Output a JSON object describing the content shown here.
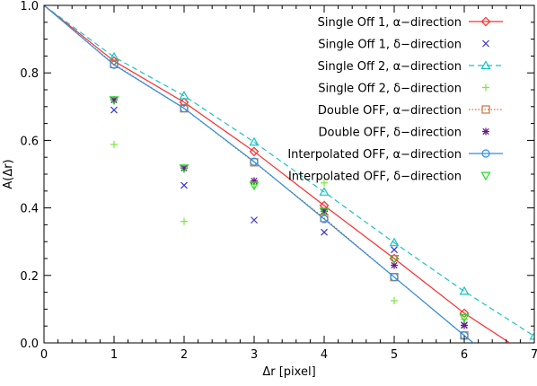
{
  "chart_data": {
    "type": "line",
    "xlabel": "Δr [pixel]",
    "ylabel": "A(Δr)",
    "xlim": [
      0,
      7
    ],
    "ylim": [
      0,
      1
    ],
    "x_ticks": [
      "0",
      "1",
      "2",
      "3",
      "4",
      "5",
      "6",
      "7"
    ],
    "y_ticks": [
      "0.0",
      "0.2",
      "0.4",
      "0.6",
      "0.8",
      "1.0"
    ],
    "legend_position": "top-right",
    "grid": false,
    "series": [
      {
        "name": "Single Off 1, α−direction",
        "color": "#ff2a2a",
        "marker": "diamond",
        "line": "solid",
        "x": [
          0,
          1,
          2,
          3,
          4,
          5,
          6,
          6.65
        ],
        "y": [
          1.0,
          0.835,
          0.713,
          0.567,
          0.407,
          0.25,
          0.088,
          0.0
        ]
      },
      {
        "name": "Single Off 1, δ−direction",
        "color": "#3a33d6",
        "marker": "x",
        "line": "none",
        "x": [
          0,
          1,
          2,
          3,
          4,
          5,
          6
        ],
        "y": [
          1.0,
          0.69,
          0.467,
          0.364,
          0.328,
          0.276,
          0.053
        ]
      },
      {
        "name": "Single Off 2, α−direction",
        "color": "#17c3c3",
        "marker": "triangle",
        "line": "dashed",
        "x": [
          0,
          1,
          2,
          3,
          4,
          5,
          6,
          7
        ],
        "y": [
          1.0,
          0.847,
          0.732,
          0.595,
          0.447,
          0.297,
          0.153,
          0.02
        ]
      },
      {
        "name": "Single Off 2, δ−direction",
        "color": "#7ae83a",
        "marker": "plus",
        "line": "none",
        "x": [
          0,
          1,
          2,
          3,
          4,
          5,
          6
        ],
        "y": [
          1.0,
          0.588,
          0.36,
          0.47,
          0.474,
          0.125,
          0.07
        ]
      },
      {
        "name": "Double OFF, α−direction",
        "color": "#c8733c",
        "marker": "square",
        "line": "dotted",
        "x": [
          0,
          1,
          2,
          3,
          4,
          5,
          6
        ],
        "y": [
          1.0,
          0.826,
          0.695,
          0.535,
          0.37,
          0.195,
          0.022
        ]
      },
      {
        "name": "Double OFF, δ−direction",
        "color": "#6b1d8c",
        "marker": "asterisk",
        "line": "none",
        "x": [
          0,
          1,
          2,
          3,
          4,
          5,
          6
        ],
        "y": [
          1.0,
          0.72,
          0.518,
          0.48,
          0.39,
          0.23,
          0.052
        ]
      },
      {
        "name": "Interpolated OFF, α−direction",
        "color": "#2f8ee0",
        "marker": "circle",
        "line": "solid",
        "x": [
          0,
          1,
          2,
          3,
          4,
          5,
          6,
          6.13
        ],
        "y": [
          1.0,
          0.824,
          0.695,
          0.537,
          0.367,
          0.195,
          0.022,
          0.0
        ]
      },
      {
        "name": "Interpolated OFF, δ−direction",
        "color": "#2bd42b",
        "marker": "triangle-down",
        "line": "none",
        "x": [
          0,
          1,
          2,
          3,
          4,
          5,
          6
        ],
        "y": [
          1.0,
          0.72,
          0.518,
          0.467,
          0.39,
          0.25,
          0.075
        ]
      }
    ]
  }
}
